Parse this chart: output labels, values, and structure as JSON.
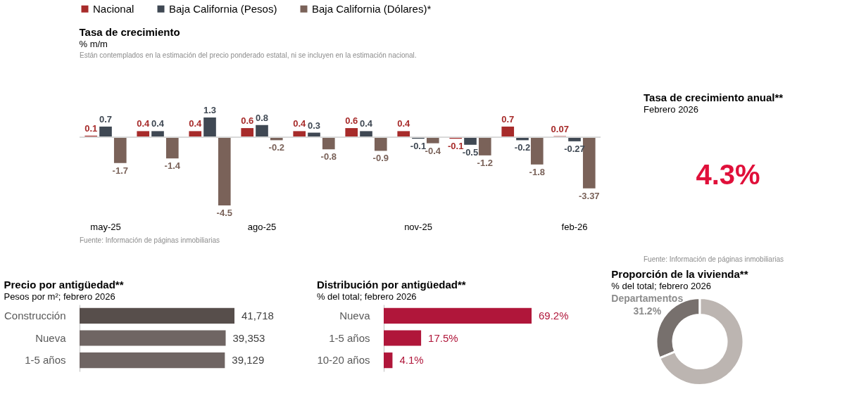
{
  "chart_data": [
    {
      "type": "bar",
      "title": "Tasa de crecimiento",
      "subtitle": "% m/m",
      "categories": [
        "may-25",
        null,
        null,
        "ago-25",
        null,
        null,
        "nov-25",
        null,
        null,
        "feb-26"
      ],
      "legend": "top",
      "data_labels": true,
      "series": [
        {
          "name": "Nacional",
          "color": "#a72b2a",
          "values": [
            0.1,
            0.4,
            0.4,
            0.6,
            0.4,
            0.6,
            0.4,
            -0.1,
            0.7,
            0.07
          ]
        },
        {
          "name": "Baja California (Pesos)",
          "color": "#3f4853",
          "values": [
            0.7,
            0.4,
            1.3,
            0.8,
            0.3,
            0.4,
            -0.1,
            -0.5,
            -0.2,
            -0.27
          ]
        },
        {
          "name": "Baja California (Dólares)*",
          "color": "#7a6259",
          "values": [
            -1.7,
            -1.4,
            -4.5,
            -0.2,
            -0.8,
            -0.9,
            -0.4,
            -1.2,
            -1.8,
            -3.37
          ]
        }
      ],
      "annotations": [
        "Están contemplados en la estimación del precio ponderado estatal, ni se incluyen en la estimación nacional.",
        "Fuente: Información de páginas inmobiliarias"
      ]
    },
    {
      "type": "other",
      "title": "Tasa de crecimiento anual**",
      "subtitle": "Febrero 2026",
      "annotations": [
        "4.3%",
        "Fuente: Información de páginas inmobiliarias"
      ]
    },
    {
      "type": "bar",
      "orientation": "horizontal",
      "title": "Precio por antigüedad**",
      "subtitle": "Pesos por m²; febrero 2026",
      "categories": [
        "Construcción",
        "Nueva",
        "1-5 años"
      ],
      "values": [
        41718,
        39353,
        39129
      ],
      "colors": [
        "#574e4b",
        "#6f6563",
        "#6f6563"
      ],
      "value_labels": [
        "41,718",
        "39,353",
        "39,129"
      ]
    },
    {
      "type": "bar",
      "orientation": "horizontal",
      "title": "Distribución por antigüedad**",
      "subtitle": "% del total; febrero 2026",
      "categories": [
        "Nueva",
        "1-5 años",
        "10-20 años"
      ],
      "values": [
        69.2,
        17.5,
        4.1
      ],
      "colors": [
        "#b0163a",
        "#b0163a",
        "#b0163a"
      ],
      "value_labels": [
        "69.2%",
        "17.5%",
        "4.1%"
      ]
    },
    {
      "type": "donut",
      "title": "Proporción de la vivienda**",
      "subtitle": "% del total; febrero 2026",
      "categories": [
        "Departamentos",
        null
      ],
      "values": [
        31.2,
        68.8
      ],
      "colors": [
        "#77706d",
        "#bcb5b1"
      ],
      "value_labels": [
        "31.2%",
        null
      ]
    }
  ]
}
